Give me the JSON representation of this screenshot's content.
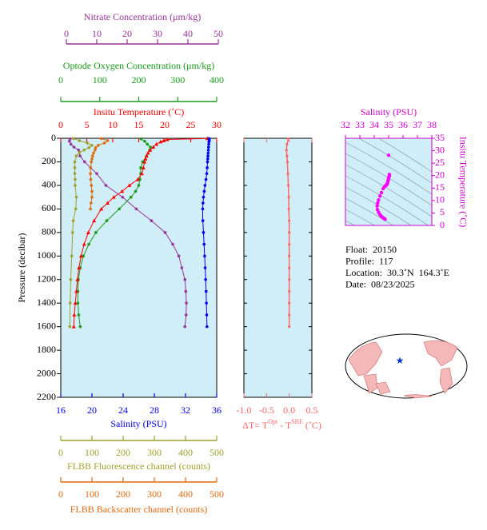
{
  "chart_data": [
    {
      "type": "line",
      "ylabel": "Pressure (decibar)",
      "ylim": [
        0,
        2200
      ],
      "y_reversed": true,
      "yticks": [
        0,
        200,
        400,
        600,
        800,
        1000,
        1200,
        1400,
        1600,
        1800,
        2000,
        2200
      ],
      "background": "#d0eef8",
      "series": [
        {
          "xlabel": "Nitrate Concentration (μm/kg)",
          "color": "#993399",
          "marker": "circle",
          "xlim": [
            0,
            50
          ],
          "xticks": [
            0,
            10,
            20,
            30,
            40,
            50
          ],
          "pressure": [
            5,
            25,
            50,
            75,
            100,
            150,
            200,
            250,
            300,
            400,
            500,
            600,
            700,
            800,
            900,
            1000,
            1100,
            1200,
            1300,
            1400,
            1500,
            1600
          ],
          "values": [
            1.2,
            1.0,
            1.5,
            2.5,
            4,
            4.5,
            6,
            8,
            10,
            13,
            18.5,
            23,
            28,
            32.5,
            35,
            37,
            38,
            39,
            39.3,
            39.5,
            39.4,
            39
          ]
        },
        {
          "xlabel": "Optode Oxygen Concentration (μm/kg)",
          "color": "#1a9a1a",
          "marker": "circle",
          "xlim": [
            0,
            400
          ],
          "xticks": [
            0,
            100,
            200,
            300,
            400
          ],
          "pressure": [
            5,
            25,
            50,
            75,
            100,
            150,
            200,
            250,
            300,
            350,
            400,
            450,
            500,
            600,
            700,
            800,
            900,
            1000,
            1100,
            1200,
            1300,
            1400,
            1500,
            1600
          ],
          "values": [
            206,
            215,
            222,
            230,
            228,
            220,
            210,
            205,
            205,
            203,
            200,
            192,
            180,
            150,
            118,
            90,
            72,
            58,
            50,
            45,
            44,
            44,
            46,
            50
          ]
        },
        {
          "xlabel": "Insitu Temperature (˚C)",
          "color": "#ff0000",
          "marker": "triangle",
          "xlim": [
            0,
            30
          ],
          "xticks": [
            0,
            5,
            10,
            15,
            20,
            25,
            30
          ],
          "pressure": [
            2,
            10,
            20,
            30,
            50,
            75,
            100,
            125,
            150,
            175,
            200,
            250,
            300,
            350,
            400,
            450,
            500,
            550,
            600,
            700,
            800,
            900,
            1000,
            1100,
            1200,
            1300,
            1400,
            1500,
            1600
          ],
          "values": [
            28.2,
            20.5,
            19.8,
            19.2,
            18.4,
            17.8,
            17.2,
            16.8,
            16.5,
            16.3,
            16.1,
            15.9,
            15.6,
            14.8,
            13.2,
            11.8,
            10.2,
            9.0,
            7.8,
            6.4,
            5.3,
            4.5,
            3.9,
            3.5,
            3.2,
            3.0,
            2.8,
            2.6,
            2.5
          ]
        },
        {
          "xlabel": "Salinity (PSU)",
          "color": "#0000ee",
          "marker": "circle",
          "xlim": [
            16,
            36
          ],
          "xticks": [
            16,
            20,
            24,
            28,
            32,
            36
          ],
          "pressure": [
            2,
            10,
            20,
            30,
            50,
            75,
            100,
            125,
            150,
            175,
            200,
            250,
            300,
            350,
            400,
            450,
            500,
            550,
            600,
            700,
            800,
            900,
            1000,
            1100,
            1200,
            1300,
            1400,
            1500,
            1600
          ],
          "values": [
            35.0,
            35.05,
            35.05,
            35.0,
            34.98,
            34.95,
            34.93,
            34.9,
            34.88,
            34.85,
            34.82,
            34.78,
            34.72,
            34.62,
            34.5,
            34.4,
            34.3,
            34.24,
            34.2,
            34.22,
            34.3,
            34.38,
            34.45,
            34.52,
            34.58,
            34.64,
            34.68,
            34.72,
            34.75
          ]
        },
        {
          "xlabel": "FLBB Fluorescence channel (counts)",
          "color": "#a0a030",
          "marker": "circle",
          "xlim": [
            0,
            500
          ],
          "xticks": [
            0,
            100,
            200,
            300,
            400,
            500
          ],
          "pressure": [
            2,
            20,
            40,
            60,
            80,
            100,
            120,
            150,
            200,
            250,
            300,
            350,
            400,
            500,
            600,
            700,
            800,
            1000,
            1200,
            1400,
            1600
          ],
          "values": [
            40,
            60,
            85,
            100,
            90,
            75,
            60,
            50,
            45,
            45,
            45,
            46,
            46,
            50,
            48,
            40,
            38,
            35,
            32,
            30,
            29
          ]
        },
        {
          "xlabel": "FLBB Backscatter channel (counts)",
          "color": "#e06a10",
          "marker": "circle",
          "xlim": [
            0,
            500
          ],
          "xticks": [
            0,
            100,
            200,
            300,
            400,
            500
          ],
          "pressure": [
            2,
            20,
            40,
            60,
            80,
            100,
            125,
            150,
            175,
            200,
            250,
            300,
            350,
            400,
            450,
            500,
            550,
            600
          ],
          "values": [
            130,
            150,
            140,
            120,
            112,
            110,
            105,
            102,
            100,
            98,
            96,
            95,
            96,
            98,
            100,
            100,
            97,
            95
          ]
        }
      ]
    },
    {
      "type": "line",
      "xlabel": [
        "ΔT= T",
        "Opt",
        " - T",
        "SBE",
        " (˚C)"
      ],
      "color": "#ff6666",
      "background": "#d0eef8",
      "xlim": [
        -1,
        0.5
      ],
      "xticks": [
        {
          "value": -1,
          "label": "-1.0"
        },
        -0.5,
        {
          "value": 0,
          "label": "0.0"
        },
        0.5
      ],
      "ylim": [
        0,
        2200
      ],
      "y_reversed": true,
      "yticks": [
        0,
        200,
        400,
        600,
        800,
        1000,
        1200,
        1400,
        1600,
        1800,
        2000,
        2200
      ],
      "pressure": [
        5,
        50,
        100,
        150,
        200,
        300,
        400,
        500,
        600,
        700,
        800,
        900,
        1000,
        1100,
        1200,
        1300,
        1400,
        1500,
        1600
      ],
      "values": [
        -0.02,
        -0.05,
        -0.06,
        -0.05,
        -0.04,
        -0.03,
        -0.02,
        -0.01,
        -0.01,
        0,
        0,
        0,
        0,
        0,
        0,
        0,
        0,
        0,
        0
      ]
    },
    {
      "type": "scatter",
      "xlabel": "Salinity (PSU)",
      "ylabel": "Insitu Temperature (˚C)",
      "color": "#ff00ff",
      "label_color": "#cc00cc",
      "background": "#d0eef8",
      "xlim": [
        32,
        38
      ],
      "xticks": [
        32,
        33,
        34,
        35,
        36,
        37,
        38
      ],
      "ylim": [
        0,
        35
      ],
      "yticks": [
        0,
        5,
        10,
        15,
        20,
        25,
        30,
        35
      ],
      "x": [
        35.0,
        35.05,
        35.05,
        35.0,
        34.98,
        34.95,
        34.93,
        34.9,
        34.88,
        34.85,
        34.82,
        34.78,
        34.72,
        34.62,
        34.5,
        34.4,
        34.3,
        34.24,
        34.2,
        34.22,
        34.3,
        34.38,
        34.45,
        34.52,
        34.58,
        34.64,
        34.68,
        34.72,
        34.75
      ],
      "y": [
        28.2,
        20.5,
        19.8,
        19.2,
        18.4,
        17.8,
        17.2,
        16.8,
        16.5,
        16.3,
        16.1,
        15.9,
        15.6,
        14.8,
        13.2,
        11.8,
        10.2,
        9.0,
        7.8,
        6.4,
        5.3,
        4.5,
        3.9,
        3.5,
        3.2,
        3.0,
        2.8,
        2.6,
        2.5
      ]
    }
  ],
  "info": {
    "lines": [
      "Float:  20150",
      "Profile:  117",
      "Location:  30.3˚N  164.3˚E",
      "Date:  08/23/2025"
    ]
  }
}
